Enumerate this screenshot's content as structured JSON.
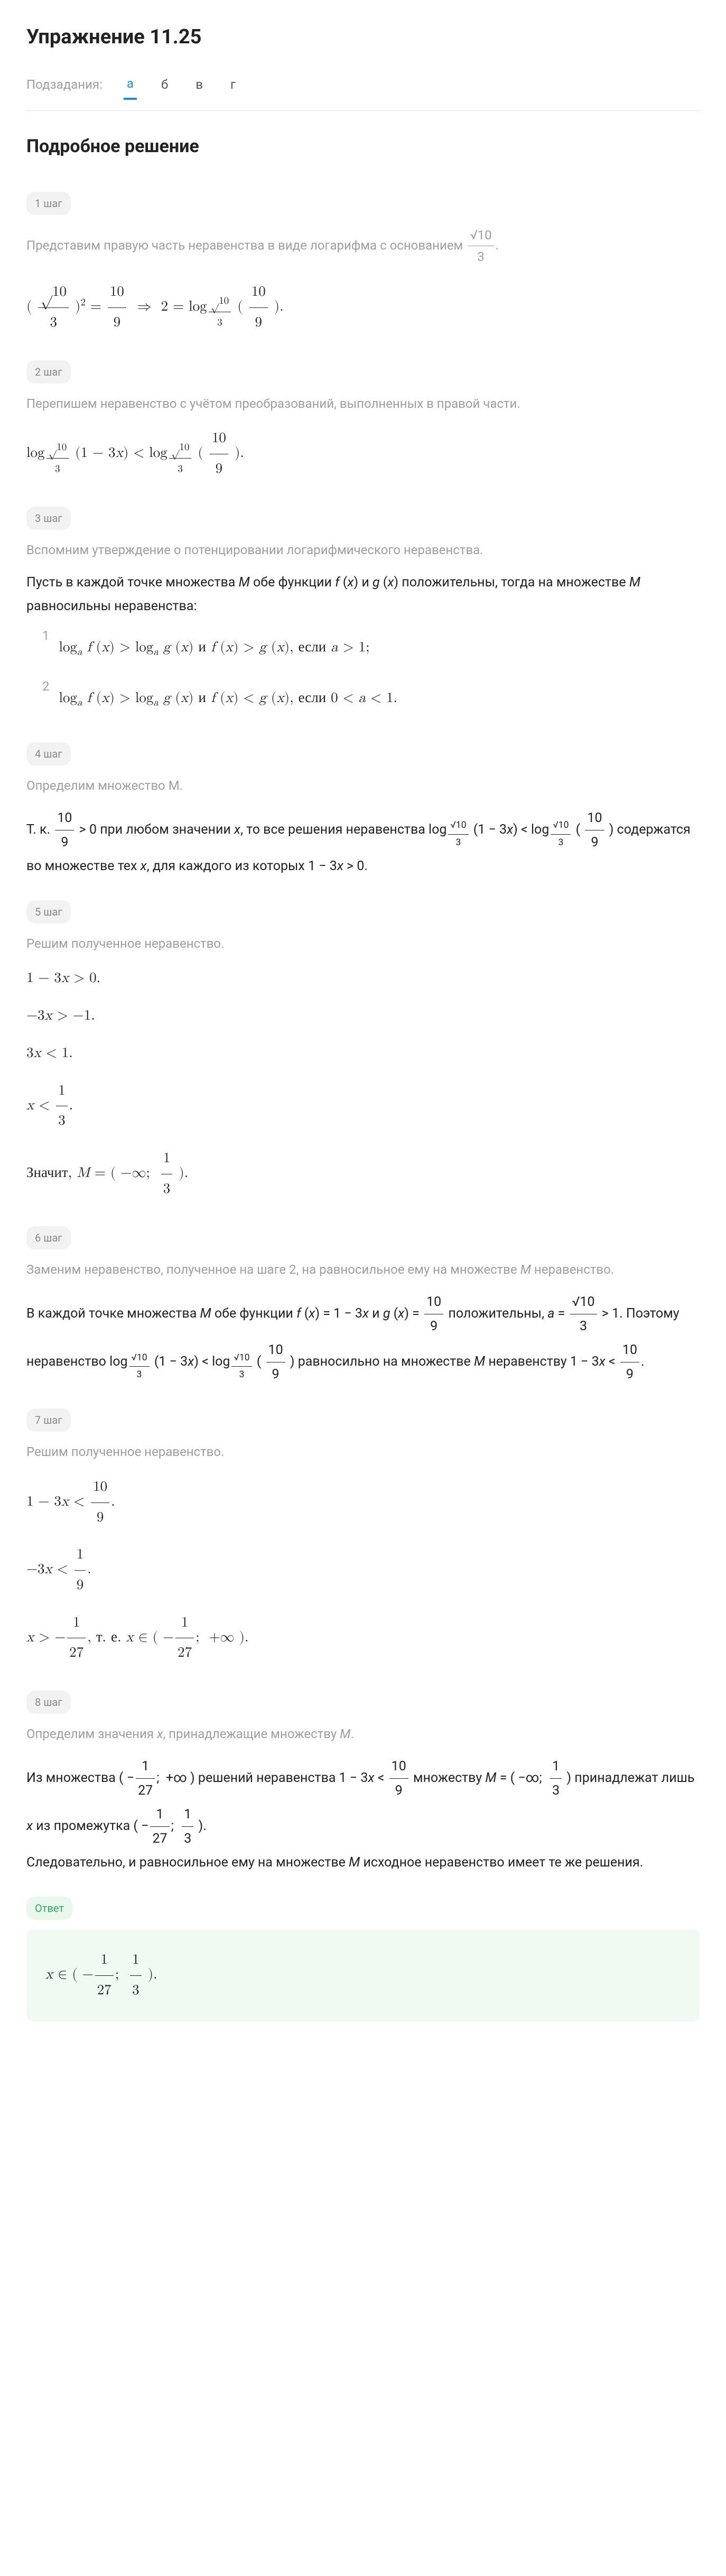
{
  "title": "Упражнение 11.25",
  "subtasks_label": "Подзадания:",
  "tabs": [
    "а",
    "б",
    "в",
    "г"
  ],
  "active_tab": 0,
  "section_title": "Подробное решение",
  "steps": [
    {
      "badge": "1 шаг",
      "intro": "Представим правую часть неравенства в виде логарифма с основанием √10 / 3.",
      "math": "(√10 / 3)² = 10/9  ⇒  2 = log_{√10/3} (10/9)."
    },
    {
      "badge": "2 шаг",
      "intro": "Перепишем неравенство с учётом преобразований, выполненных в правой части.",
      "math": "log_{√10/3} (1 − 3x) < log_{√10/3} (10/9)."
    },
    {
      "badge": "3 шаг",
      "intro": "Вспомним утверждение о потенцировании логарифмического неравенства.",
      "text": "Пусть в каждой точке множества M обе функции f (x) и g (x) положительны, тогда на множестве M равносильны неравенства:",
      "items": [
        "logₐ f (x) > logₐ g (x) и f (x) > g (x), если a > 1;",
        "logₐ f (x) > logₐ g (x) и f (x) < g (x), если 0 < a < 1."
      ]
    },
    {
      "badge": "4 шаг",
      "intro": "Определим множество M.",
      "text": "Т. к. 10/9 > 0 при любом значении x, то все решения неравенства log_{√10/3} (1 − 3x) < log_{√10/3} (10/9) содержатся во множестве тех x, для каждого из которых 1 − 3x > 0."
    },
    {
      "badge": "5 шаг",
      "intro": "Решим полученное неравенство.",
      "math_lines": [
        "1 − 3x > 0.",
        "−3x > −1.",
        "3x < 1.",
        "x < 1/3.",
        "Значит, M = (−∞;  1/3)."
      ]
    },
    {
      "badge": "6 шаг",
      "intro": "Заменим неравенство, полученное на шаге 2, на равносильное ему на множестве M неравенство.",
      "text": "В каждой точке множества M обе функции f (x) = 1 − 3x и g (x) = 10/9 положительны, a = √10/3 > 1. Поэтому неравенство log_{√10/3} (1 − 3x) < log_{√10/3}(10/9) равносильно на множестве M неравенству 1 − 3x < 10/9."
    },
    {
      "badge": "7 шаг",
      "intro": "Решим полученное неравенство.",
      "math_lines": [
        "1 − 3x < 10/9.",
        "−3x < 1/9.",
        "x > −1/27, т. е. x ∈ (−1/27;  +∞)."
      ]
    },
    {
      "badge": "8 шаг",
      "intro": "Определим значения x, принадлежащие множеству M.",
      "text": "Из множества (−1/27;  +∞) решений неравенства 1 − 3x < 10/9 множеству M = (−∞;  1/3) принадлежат лишь x из промежутка (−1/27;  1/3). Следовательно, и равносильное ему на множестве M исходное неравенство имеет те же решения."
    }
  ],
  "answer_label": "Ответ",
  "answer": "x ∈ (−1/27;  1/3).",
  "colors": {
    "accent": "#1393e1",
    "muted": "#9e9e9e",
    "badge_bg": "#f2f2f2",
    "answer_bg": "#f0faf3",
    "answer_fg": "#2fa862",
    "text": "#222222",
    "divider": "#e0e0e0"
  },
  "fontsize": {
    "h1": 38,
    "h2": 34,
    "body": 25,
    "gray": 24,
    "math": 27,
    "badge": 20
  }
}
